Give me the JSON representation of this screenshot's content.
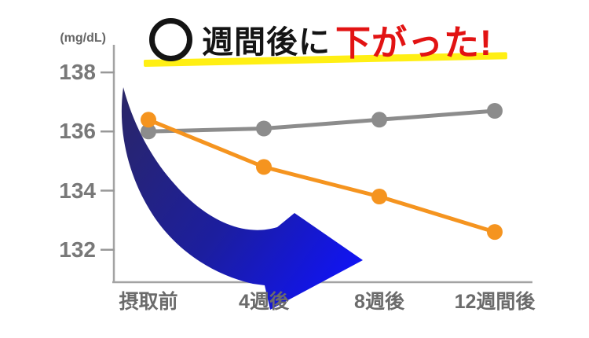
{
  "title": {
    "masked_symbol": "○",
    "text_black": "週間後に",
    "text_red": "下がった!"
  },
  "y_axis": {
    "unit": "(mg/dL)",
    "tick_labels": [
      "138",
      "136",
      "134",
      "132"
    ]
  },
  "x_axis": {
    "labels": [
      "摂取前",
      "4週後",
      "8週後",
      "12週間後"
    ]
  },
  "chart_data": {
    "type": "line",
    "title": "○週間後に下がった!",
    "ylabel": "(mg/dL)",
    "categories": [
      "摂取前",
      "4週後",
      "8週後",
      "12週間後"
    ],
    "series": [
      {
        "name": "gray-line",
        "color": "#8c8c8c",
        "values": [
          136.0,
          136.1,
          136.4,
          136.7
        ]
      },
      {
        "name": "orange-line",
        "color": "#f5941f",
        "values": [
          136.4,
          134.8,
          133.8,
          132.6
        ]
      }
    ],
    "y_ticks": [
      138,
      136,
      134,
      132
    ],
    "ylim": [
      131,
      139
    ],
    "grid": false,
    "legend": "none",
    "annotations": [
      "large blue curved arrow pointing down to the right over the plot",
      "yellow marker underline beneath the title"
    ]
  },
  "colors": {
    "orange": "#f5941f",
    "gray": "#8c8c8c",
    "title_black": "#141414",
    "title_red": "#e21313",
    "yellow_highlight": "#ffee00",
    "arrow_dark": "#2a2668",
    "arrow_bright": "#1114f0",
    "axis": "#a3a3a3",
    "tick_text": "#787878"
  }
}
